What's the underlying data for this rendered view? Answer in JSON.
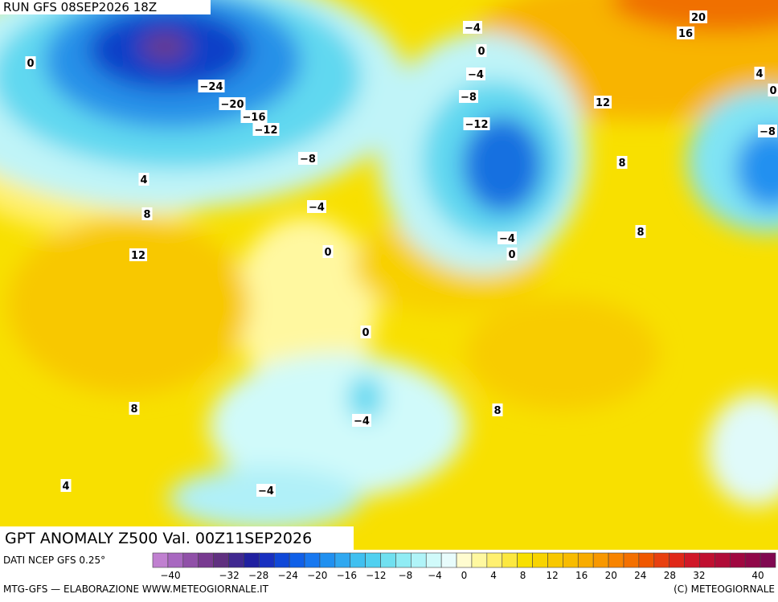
{
  "header": {
    "run": "RUN GFS 08SEP2026 18Z"
  },
  "map": {
    "title": "GPT ANOMALY Z500 Val. 00Z11SEP2026",
    "contour_labels": [
      "0",
      "−24",
      "−20",
      "−16",
      "−12",
      "−8",
      "4",
      "8",
      "−4",
      "12",
      "0",
      "0",
      "8",
      "−4",
      "4",
      "−4",
      "−4",
      "0",
      "−4",
      "−8",
      "−12",
      "8",
      "12",
      "16",
      "20",
      "4",
      "0",
      "−8",
      "8",
      "−4",
      "0",
      "8"
    ]
  },
  "colorbar": {
    "colors": [
      "#c080d0",
      "#a868c0",
      "#9050a8",
      "#783a90",
      "#603080",
      "#402890",
      "#2020a0",
      "#1830c0",
      "#1048d8",
      "#1060e8",
      "#1878f0",
      "#2090f0",
      "#30a8f0",
      "#40c0f0",
      "#50d0f0",
      "#70e0f0",
      "#90ecf4",
      "#b0f4f8",
      "#d0fafa",
      "#e8fcfc",
      "#fffcd0",
      "#fff8a0",
      "#fff070",
      "#fce840",
      "#f8e000",
      "#f8d400",
      "#f8c800",
      "#f8bc00",
      "#f8ac00",
      "#f89800",
      "#f88400",
      "#f47000",
      "#f05800",
      "#e84010",
      "#e02818",
      "#d01828",
      "#c01030",
      "#b00c38",
      "#a00840",
      "#900848",
      "#800850"
    ],
    "labels": [
      "−40",
      "−32",
      "−28",
      "−24",
      "−20",
      "−16",
      "−12",
      "−8",
      "−4",
      "0",
      "4",
      "8",
      "12",
      "16",
      "20",
      "24",
      "28",
      "32",
      "40"
    ]
  },
  "footer": {
    "source": "DATI NCEP GFS 0.25°",
    "credit": "MTG-GFS — ELABORAZIONE WWW.METEOGIORNALE.IT",
    "copyright": "(C) METEOGIORNALE"
  }
}
